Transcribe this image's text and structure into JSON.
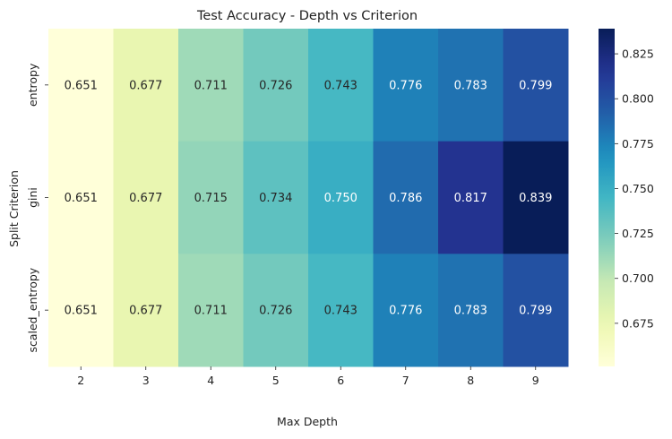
{
  "chart_data": {
    "type": "heatmap",
    "title": "Test Accuracy - Depth vs Criterion",
    "xlabel": "Max Depth",
    "ylabel": "Split Criterion",
    "x_categories": [
      "2",
      "3",
      "4",
      "5",
      "6",
      "7",
      "8",
      "9"
    ],
    "y_categories": [
      "entropy",
      "gini",
      "scaled_entropy"
    ],
    "values": [
      [
        0.651,
        0.677,
        0.711,
        0.726,
        0.743,
        0.776,
        0.783,
        0.799
      ],
      [
        0.651,
        0.677,
        0.715,
        0.734,
        0.75,
        0.786,
        0.817,
        0.839
      ],
      [
        0.651,
        0.677,
        0.711,
        0.726,
        0.743,
        0.776,
        0.783,
        0.799
      ]
    ],
    "value_labels": [
      [
        "0.651",
        "0.677",
        "0.711",
        "0.726",
        "0.743",
        "0.776",
        "0.783",
        "0.799"
      ],
      [
        "0.651",
        "0.677",
        "0.715",
        "0.734",
        "0.750",
        "0.786",
        "0.817",
        "0.839"
      ],
      [
        "0.651",
        "0.677",
        "0.711",
        "0.726",
        "0.743",
        "0.776",
        "0.783",
        "0.799"
      ]
    ],
    "colormap": "YlGnBu",
    "vmin": 0.651,
    "vmax": 0.839,
    "colorbar_ticks": [
      "0.675",
      "0.700",
      "0.725",
      "0.750",
      "0.775",
      "0.800",
      "0.825"
    ],
    "colorbar_tick_values": [
      0.675,
      0.7,
      0.725,
      0.75,
      0.775,
      0.8,
      0.825
    ],
    "colorbar_position": "right",
    "grid": false
  }
}
